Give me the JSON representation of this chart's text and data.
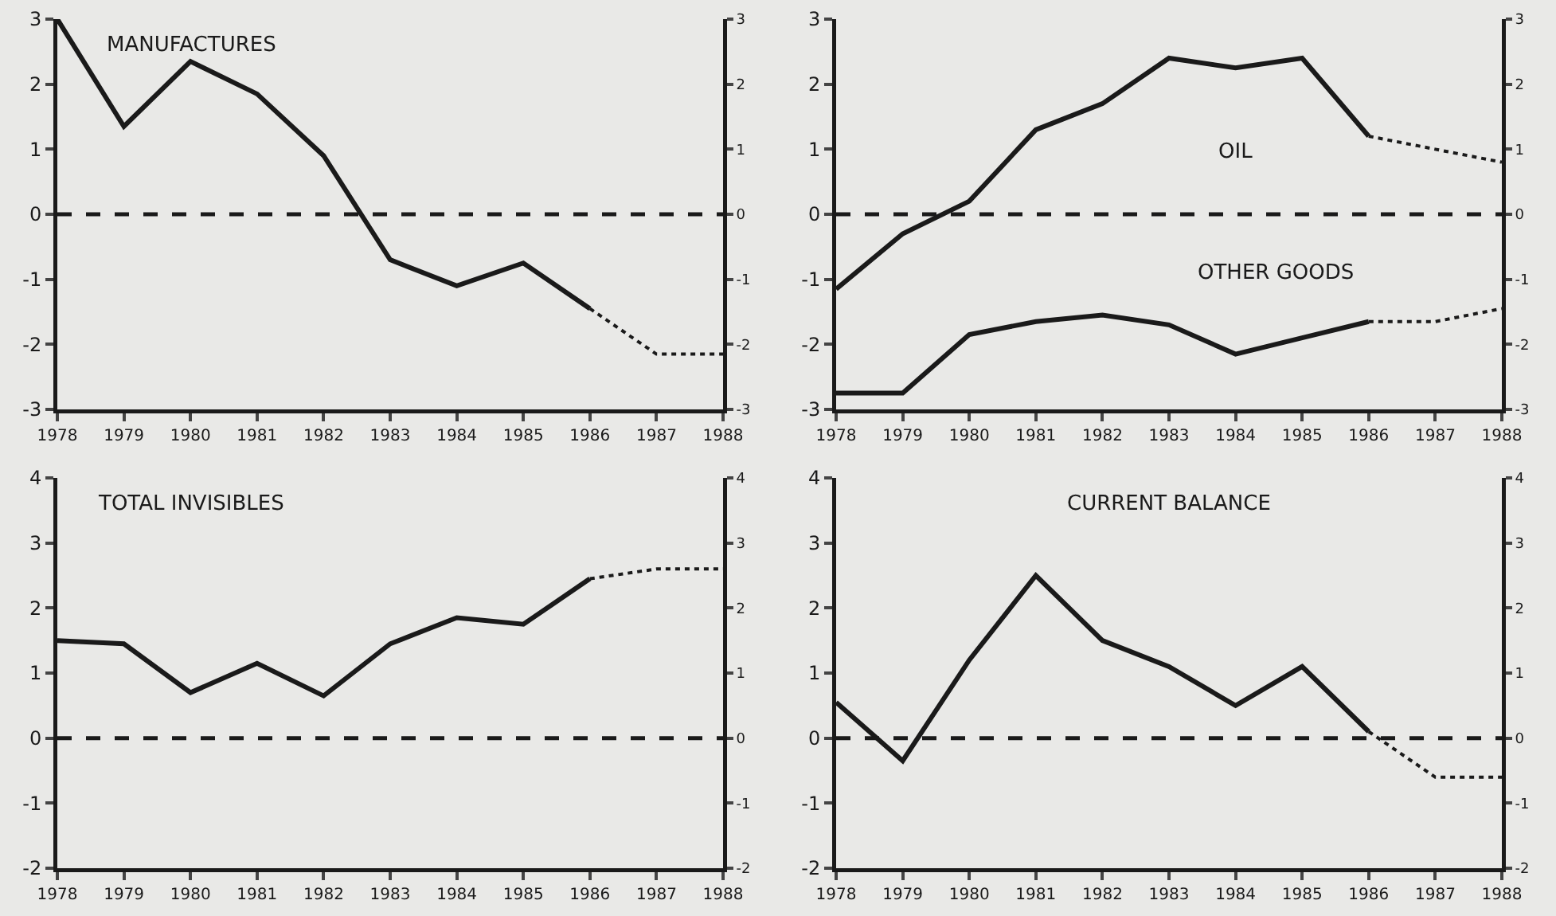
{
  "chart_data": [
    {
      "type": "line",
      "title": "MANUFACTURES",
      "categories": [
        "1978",
        "1979",
        "1980",
        "1981",
        "1982",
        "1983",
        "1984",
        "1985",
        "1986",
        "1987",
        "1988"
      ],
      "series": [
        {
          "color": "#1a1a1a",
          "line_style": "solid",
          "values": [
            3.0,
            1.35,
            2.35,
            1.85,
            0.9,
            -0.7,
            -1.1,
            -0.75,
            -1.45,
            null,
            null
          ]
        },
        {
          "color": "#1a1a1a",
          "line_style": "dotted",
          "values": [
            null,
            null,
            null,
            null,
            null,
            null,
            null,
            null,
            -1.45,
            -2.15,
            -2.15
          ]
        }
      ],
      "ylim": [
        -3,
        3
      ],
      "yticks": [
        -3,
        -2,
        -1,
        0,
        1,
        2,
        3
      ],
      "y2lim": [
        -3,
        3
      ],
      "y2ticks": [
        -3,
        -2,
        -1,
        0,
        1,
        2,
        3
      ],
      "ref_lines": [
        {
          "axis": "y",
          "value": 0,
          "color": "#1a1a1a",
          "line_style": "dashed"
        }
      ],
      "grid": false,
      "marker": "none"
    },
    {
      "type": "line",
      "categories": [
        "1978",
        "1979",
        "1980",
        "1981",
        "1982",
        "1983",
        "1984",
        "1985",
        "1986",
        "1987",
        "1988"
      ],
      "series": [
        {
          "color": "#1a1a1a",
          "line_style": "solid",
          "values": [
            -1.15,
            -0.3,
            0.2,
            1.3,
            1.7,
            2.4,
            2.25,
            2.4,
            1.2,
            null,
            null
          ]
        },
        {
          "color": "#1a1a1a",
          "line_style": "dotted",
          "values": [
            null,
            null,
            null,
            null,
            null,
            null,
            null,
            null,
            1.2,
            1.0,
            0.8
          ]
        },
        {
          "color": "#1a1a1a",
          "line_style": "solid",
          "values": [
            -2.75,
            -2.75,
            -1.85,
            -1.65,
            -1.55,
            -1.7,
            -2.15,
            -1.9,
            -1.65,
            null,
            null
          ]
        },
        {
          "color": "#1a1a1a",
          "line_style": "dotted",
          "values": [
            null,
            null,
            null,
            null,
            null,
            null,
            null,
            null,
            -1.65,
            -1.65,
            -1.45
          ]
        }
      ],
      "annotations": [
        "OIL",
        "OTHER GOODS"
      ],
      "ylim": [
        -3,
        3
      ],
      "yticks": [
        -3,
        -2,
        -1,
        0,
        1,
        2,
        3
      ],
      "y2lim": [
        -3,
        3
      ],
      "y2ticks": [
        -3,
        -2,
        -1,
        0,
        1,
        2,
        3
      ],
      "ref_lines": [
        {
          "axis": "y",
          "value": 0,
          "color": "#1a1a1a",
          "line_style": "dashed"
        }
      ],
      "grid": false,
      "marker": "none"
    },
    {
      "type": "line",
      "title": "TOTAL INVISIBLES",
      "categories": [
        "1978",
        "1979",
        "1980",
        "1981",
        "1982",
        "1983",
        "1984",
        "1985",
        "1986",
        "1987",
        "1988"
      ],
      "series": [
        {
          "color": "#1a1a1a",
          "line_style": "solid",
          "values": [
            1.5,
            1.45,
            0.7,
            1.15,
            0.65,
            1.45,
            1.85,
            1.75,
            2.45,
            null,
            null
          ]
        },
        {
          "color": "#1a1a1a",
          "line_style": "dotted",
          "values": [
            null,
            null,
            null,
            null,
            null,
            null,
            null,
            null,
            2.45,
            2.6,
            2.6
          ]
        }
      ],
      "ylim": [
        -2,
        4
      ],
      "yticks": [
        -2,
        -1,
        0,
        1,
        2,
        3,
        4
      ],
      "y2lim": [
        -2,
        4
      ],
      "y2ticks": [
        -2,
        -1,
        0,
        1,
        2,
        3,
        4
      ],
      "ref_lines": [
        {
          "axis": "y",
          "value": 0,
          "color": "#1a1a1a",
          "line_style": "dashed"
        }
      ],
      "grid": false,
      "marker": "none"
    },
    {
      "type": "line",
      "title": "CURRENT BALANCE",
      "categories": [
        "1978",
        "1979",
        "1980",
        "1981",
        "1982",
        "1983",
        "1984",
        "1985",
        "1986",
        "1987",
        "1988"
      ],
      "series": [
        {
          "color": "#1a1a1a",
          "line_style": "solid",
          "values": [
            0.55,
            -0.35,
            1.2,
            2.5,
            1.5,
            1.1,
            0.5,
            1.1,
            0.1,
            null,
            null
          ]
        },
        {
          "color": "#1a1a1a",
          "line_style": "dotted",
          "values": [
            null,
            null,
            null,
            null,
            null,
            null,
            null,
            null,
            0.1,
            -0.6,
            -0.6
          ]
        }
      ],
      "ylim": [
        -2,
        4
      ],
      "yticks": [
        -2,
        -1,
        0,
        1,
        2,
        3,
        4
      ],
      "y2lim": [
        -2,
        4
      ],
      "y2ticks": [
        -2,
        -1,
        0,
        1,
        2,
        3,
        4
      ],
      "ref_lines": [
        {
          "axis": "y",
          "value": 0,
          "color": "#1a1a1a",
          "line_style": "dashed"
        }
      ],
      "grid": false,
      "marker": "none"
    }
  ]
}
